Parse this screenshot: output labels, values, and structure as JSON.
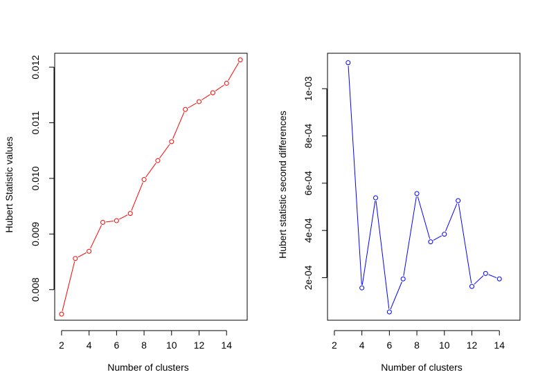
{
  "chart_data": [
    {
      "type": "line",
      "title": "",
      "xlabel": "Number of clusters",
      "ylabel": "Hubert Statistic values",
      "xlim": [
        1.5,
        15.5
      ],
      "ylim": [
        0.00745,
        0.01225
      ],
      "xticks": [
        2,
        4,
        6,
        8,
        10,
        12,
        14
      ],
      "xtick_labels": [
        "2",
        "4",
        "6",
        "8",
        "10",
        "12",
        "14"
      ],
      "yticks": [
        0.008,
        0.009,
        0.01,
        0.011,
        0.012
      ],
      "ytick_labels": [
        "0.008",
        "0.009",
        "0.010",
        "0.011",
        "0.012"
      ],
      "grid": false,
      "color": "#ff0000",
      "series": [
        {
          "x": [
            2,
            3,
            4,
            5,
            6,
            7,
            8,
            9,
            10,
            11,
            12,
            13,
            14,
            15
          ],
          "y": [
            0.00756,
            0.00856,
            0.00869,
            0.00921,
            0.00924,
            0.00937,
            0.00998,
            0.01032,
            0.01066,
            0.01124,
            0.01138,
            0.01154,
            0.01171,
            0.01213
          ]
        }
      ]
    },
    {
      "type": "line",
      "title": "",
      "xlabel": "Number of clusters",
      "ylabel": "Hubert statistic second differences",
      "xlim": [
        1.5,
        15.5
      ],
      "ylim": [
        2e-05,
        0.00115
      ],
      "xticks": [
        2,
        4,
        6,
        8,
        10,
        12,
        14
      ],
      "xtick_labels": [
        "2",
        "4",
        "6",
        "8",
        "10",
        "12",
        "14"
      ],
      "yticks": [
        0.0002,
        0.0004,
        0.0006,
        0.0008,
        0.001
      ],
      "ytick_labels": [
        "2e-04",
        "4e-04",
        "6e-04",
        "8e-04",
        "1e-03"
      ],
      "grid": false,
      "color": "#0000ff",
      "series": [
        {
          "x": [
            3,
            4,
            5,
            6,
            7,
            8,
            9,
            10,
            11,
            12,
            13,
            14
          ],
          "y": [
            0.00111,
            0.000157,
            0.000538,
            5.5e-05,
            0.000195,
            0.000556,
            0.000352,
            0.000384,
            0.000526,
            0.000163,
            0.000218,
            0.000195
          ]
        }
      ]
    }
  ]
}
